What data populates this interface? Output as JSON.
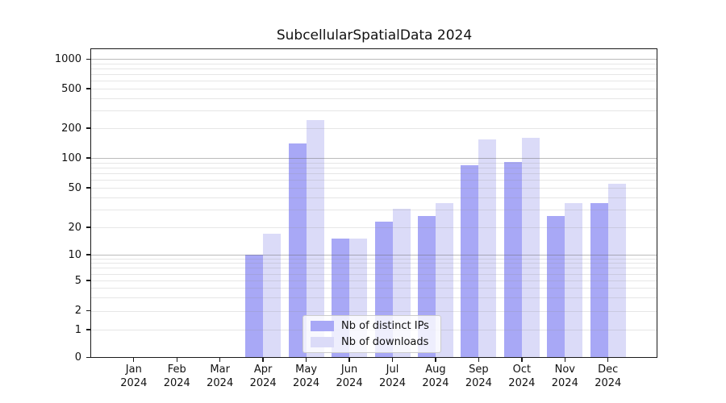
{
  "chart_data": {
    "type": "bar",
    "title": "SubcellularSpatialData 2024",
    "categories": [
      "Jan 2024",
      "Feb 2024",
      "Mar 2024",
      "Apr 2024",
      "May 2024",
      "Jun 2024",
      "Jul 2024",
      "Aug 2024",
      "Sep 2024",
      "Oct 2024",
      "Nov 2024",
      "Dec 2024"
    ],
    "series": [
      {
        "name": "Nb of distinct IPs",
        "color": "#a8a8f6",
        "values": [
          0,
          0,
          0,
          10,
          140,
          15,
          23,
          26,
          85,
          91,
          26,
          35
        ]
      },
      {
        "name": "Nb of downloads",
        "color": "#dbdbf8",
        "values": [
          0,
          0,
          0,
          17,
          240,
          15,
          31,
          35,
          155,
          160,
          35,
          55
        ]
      }
    ],
    "xlabel": "",
    "ylabel": "",
    "yscale": "symlog",
    "ylim": [
      0,
      1100
    ],
    "ytick_values": [
      0,
      1,
      2,
      5,
      10,
      20,
      50,
      100,
      200,
      500,
      1000
    ],
    "ytick_labels": [
      "0",
      "1",
      "2",
      "5",
      "10",
      "20",
      "50",
      "100",
      "200",
      "500",
      "1000"
    ],
    "grid": {
      "minor": true,
      "major_at": [
        10,
        100,
        1000
      ],
      "position": "over-bars"
    },
    "legend": {
      "position": "lower center",
      "frame": true
    }
  },
  "colors": {
    "background": "#ffffff",
    "axis": "#1a1a1a",
    "bar_distinct_ips": "#a8a8f6",
    "bar_downloads": "#dbdbf8"
  }
}
